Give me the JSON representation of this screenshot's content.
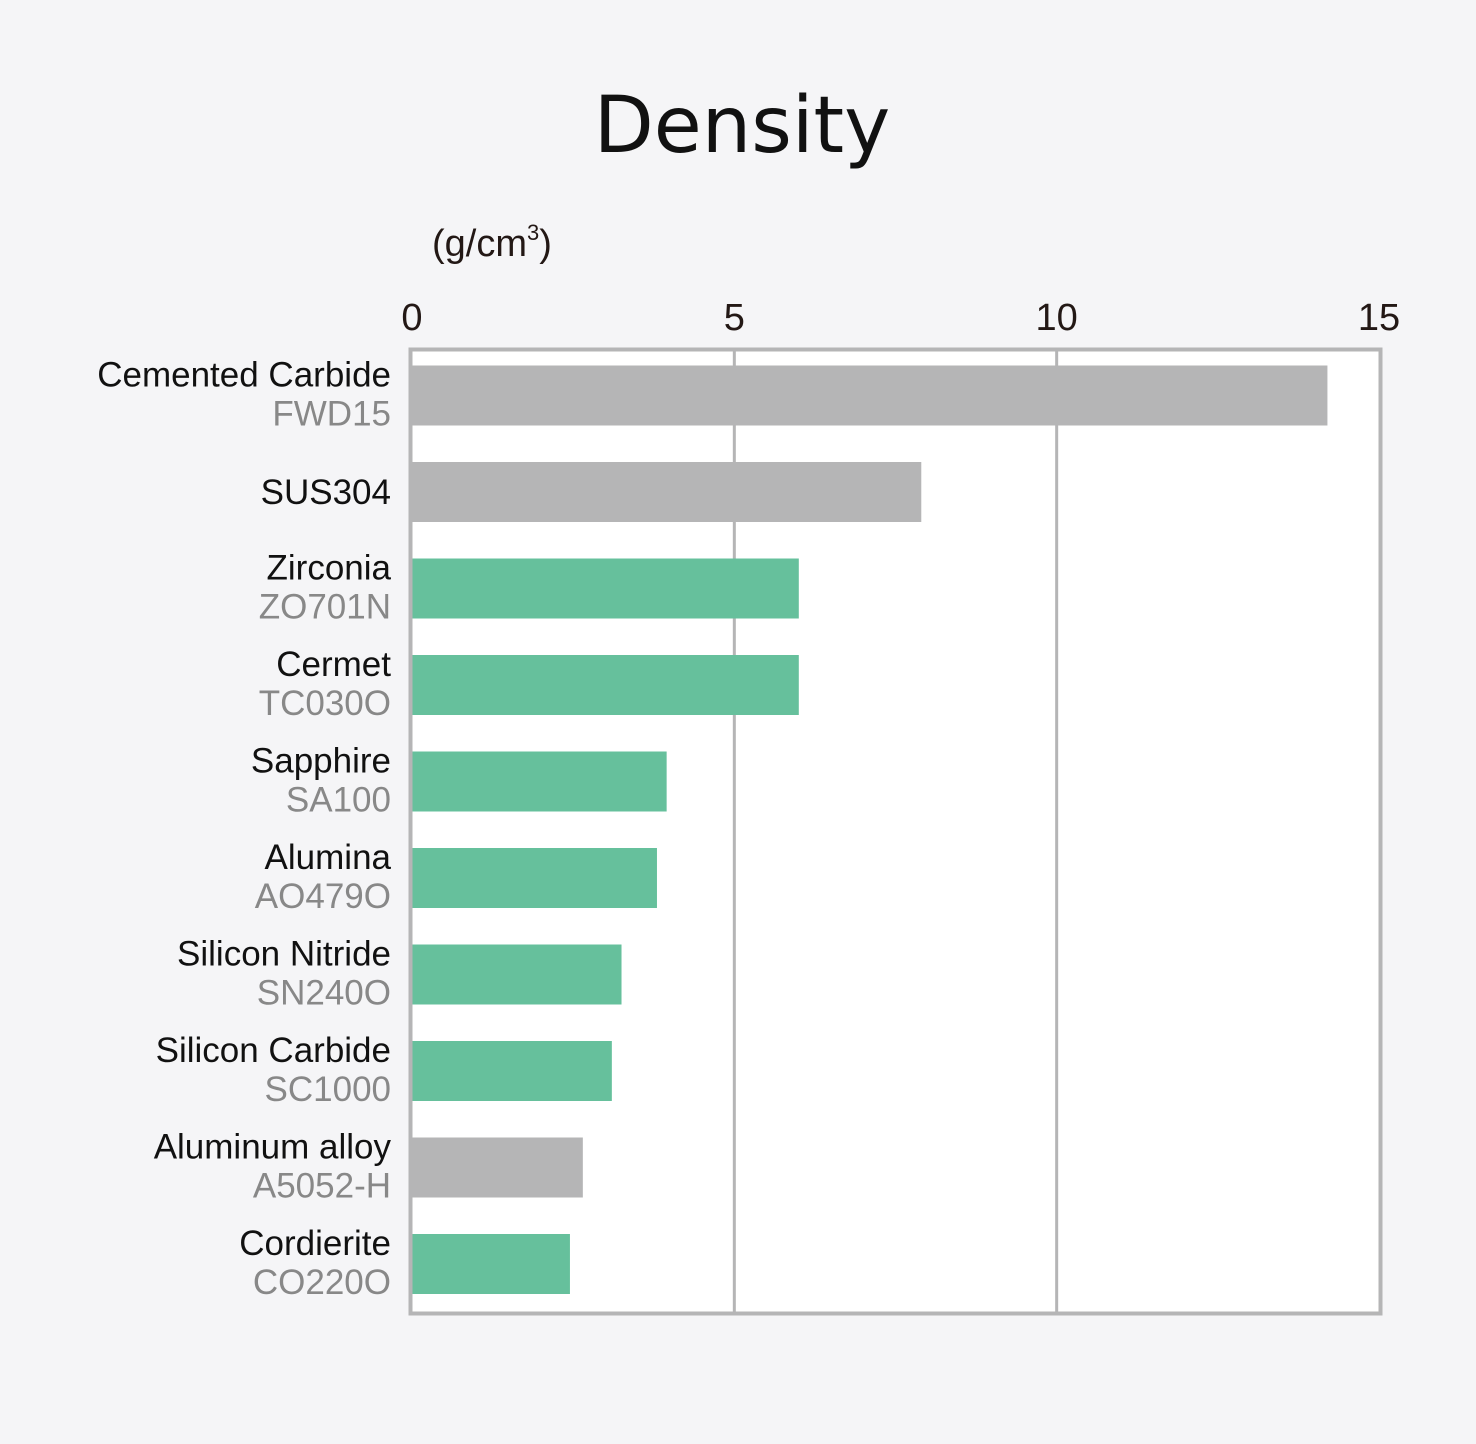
{
  "chart_data": {
    "type": "bar",
    "orientation": "horizontal",
    "title": "Density",
    "unit_label": {
      "prefix": "(g/cm",
      "superscript": "3",
      "suffix": ")"
    },
    "xlim": [
      0,
      15
    ],
    "xticks": [
      0,
      5,
      10,
      15
    ],
    "grid": true,
    "legend": "none",
    "categories": [
      {
        "name": "Cemented Carbide",
        "code": "FWD15",
        "value": 14.2,
        "group": "metal"
      },
      {
        "name": "SUS304",
        "code": "",
        "value": 7.9,
        "group": "metal"
      },
      {
        "name": "Zirconia",
        "code": "ZO701N",
        "value": 6.0,
        "group": "ceramic"
      },
      {
        "name": "Cermet",
        "code": "TC030O",
        "value": 6.0,
        "group": "ceramic"
      },
      {
        "name": "Sapphire",
        "code": "SA100",
        "value": 3.95,
        "group": "ceramic"
      },
      {
        "name": "Alumina",
        "code": "AO479O",
        "value": 3.8,
        "group": "ceramic"
      },
      {
        "name": "Silicon Nitride",
        "code": "SN240O",
        "value": 3.25,
        "group": "ceramic"
      },
      {
        "name": "Silicon Carbide",
        "code": "SC1000",
        "value": 3.1,
        "group": "ceramic"
      },
      {
        "name": "Aluminum alloy",
        "code": "A5052-H",
        "value": 2.65,
        "group": "metal"
      },
      {
        "name": "Cordierite",
        "code": "CO220O",
        "value": 2.45,
        "group": "ceramic"
      }
    ],
    "colors": {
      "metal": "#b5b5b6",
      "ceramic": "#66c09c",
      "plot_background": "#ffffff",
      "frame": "#b5b5b6",
      "gridline": "#b5b5b6",
      "page_background": "#f5f5f7"
    }
  }
}
